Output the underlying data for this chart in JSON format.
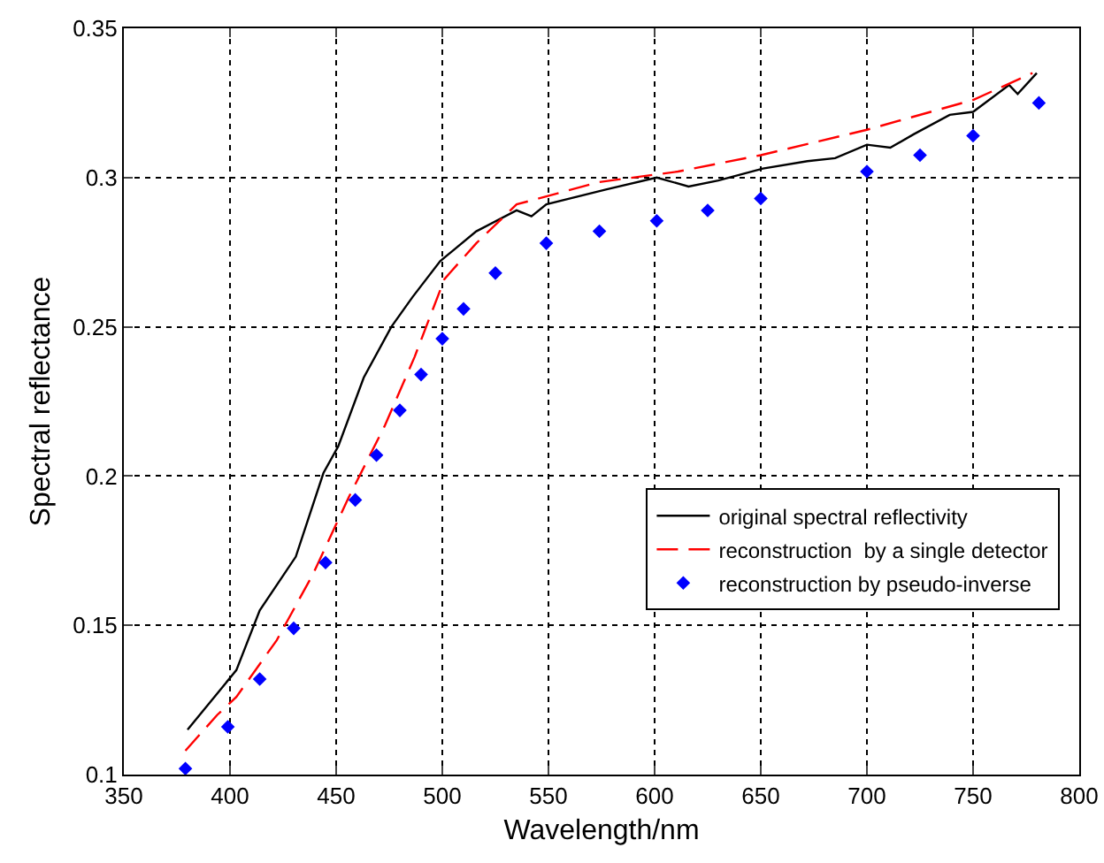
{
  "chart_data": {
    "type": "line",
    "xlabel": "Wavelength/nm",
    "ylabel": "Spectral reflectance",
    "xlim": [
      350,
      800
    ],
    "xticks": [
      350,
      400,
      450,
      500,
      550,
      600,
      650,
      700,
      750,
      800
    ],
    "ylim": [
      0.1,
      0.35
    ],
    "yticks": [
      0.1,
      0.15,
      0.2,
      0.25,
      0.3,
      0.35
    ],
    "grid": true,
    "legend": "bottom right",
    "series": [
      {
        "name": "original spectral reflectivity",
        "color": "#000000",
        "line_style": "solid",
        "marker": "none",
        "x": [
          380,
          403,
          414,
          431,
          444,
          451,
          463,
          476,
          486,
          499,
          516,
          535,
          542,
          549,
          577,
          601,
          616,
          630,
          651,
          672,
          685,
          700,
          711,
          722,
          739,
          750,
          767,
          771,
          780
        ],
        "values": [
          0.115,
          0.135,
          0.155,
          0.173,
          0.201,
          0.21,
          0.233,
          0.25,
          0.26,
          0.272,
          0.282,
          0.289,
          0.287,
          0.291,
          0.296,
          0.3,
          0.297,
          0.299,
          0.303,
          0.3055,
          0.3065,
          0.311,
          0.31,
          0.3145,
          0.321,
          0.322,
          0.331,
          0.328,
          0.335
        ]
      },
      {
        "name": "reconstruction  by a single detector",
        "color": "#ff0000",
        "line_style": "dashed",
        "marker": "none",
        "x": [
          379,
          394,
          403,
          422,
          439,
          456,
          473,
          487,
          501,
          516,
          535,
          574,
          611,
          650,
          700,
          750,
          778
        ],
        "values": [
          0.108,
          0.12,
          0.126,
          0.145,
          0.167,
          0.193,
          0.217,
          0.24,
          0.266,
          0.278,
          0.291,
          0.2985,
          0.302,
          0.3075,
          0.316,
          0.326,
          0.335
        ]
      },
      {
        "name": "reconstruction by pseudo-inverse",
        "type": "scatter",
        "color": "#0000ff",
        "marker": "diamond",
        "x": [
          379,
          399,
          414,
          430,
          445,
          459,
          469,
          480,
          490,
          500,
          510,
          525,
          549,
          574,
          601,
          625,
          650,
          700,
          725,
          750,
          781
        ],
        "values": [
          0.102,
          0.116,
          0.132,
          0.149,
          0.171,
          0.192,
          0.207,
          0.222,
          0.234,
          0.246,
          0.256,
          0.268,
          0.278,
          0.282,
          0.2855,
          0.289,
          0.293,
          0.302,
          0.3075,
          0.314,
          0.325
        ]
      }
    ]
  }
}
